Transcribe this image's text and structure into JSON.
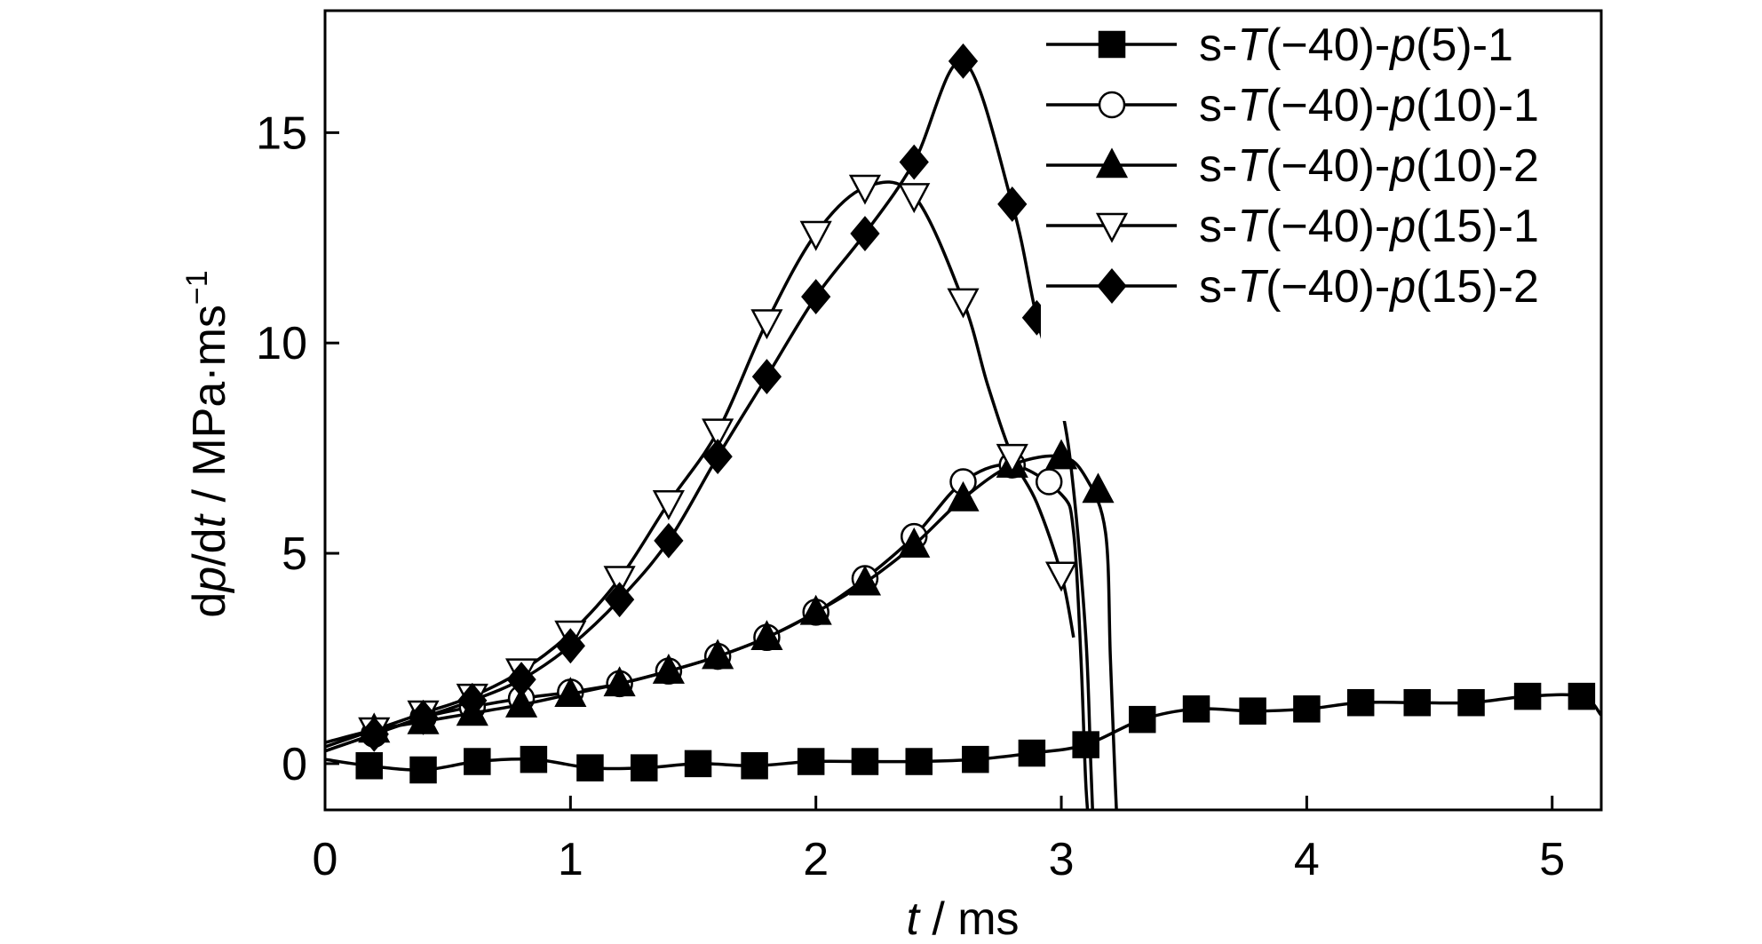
{
  "chart_data": {
    "type": "line",
    "xlabel": {
      "var": "t",
      "rest": " / ms"
    },
    "ylabel": {
      "d1": "d",
      "v1": "p",
      "mid": "/d",
      "v2": "t",
      "rest": " / MPa·ms",
      "sup": "−1"
    },
    "xlim": [
      0,
      5.2
    ],
    "ylim": [
      -1.1,
      17.9
    ],
    "xticks": [
      "0",
      "1",
      "2",
      "3",
      "4",
      "5"
    ],
    "yticks": [
      "0",
      "5",
      "10",
      "15"
    ],
    "grid": false,
    "legend_position": "top-right",
    "series": [
      {
        "name": "s-T(−40)-p(5)-1",
        "parts": {
          "a": "s-",
          "b": "T",
          "c": "(−40)-",
          "d": "p",
          "e": "(5)-1"
        },
        "marker": "square",
        "fill": "#000000",
        "x": [
          0,
          0.18,
          0.4,
          0.62,
          0.85,
          1.08,
          1.3,
          1.52,
          1.75,
          1.98,
          2.2,
          2.42,
          2.65,
          2.88,
          3.1,
          3.33,
          3.55,
          3.78,
          4.0,
          4.22,
          4.45,
          4.67,
          4.9,
          5.12,
          5.2
        ],
        "y": [
          0.1,
          -0.05,
          -0.15,
          0.05,
          0.1,
          -0.1,
          -0.1,
          0.0,
          -0.05,
          0.05,
          0.05,
          0.05,
          0.1,
          0.25,
          0.45,
          1.05,
          1.3,
          1.25,
          1.3,
          1.45,
          1.45,
          1.45,
          1.6,
          1.6,
          1.15
        ],
        "marker_x": [
          0.18,
          0.4,
          0.62,
          0.85,
          1.08,
          1.3,
          1.52,
          1.75,
          1.98,
          2.2,
          2.42,
          2.65,
          2.88,
          3.1,
          3.33,
          3.55,
          3.78,
          4.0,
          4.22,
          4.45,
          4.67,
          4.9,
          5.12
        ]
      },
      {
        "name": "s-T(−40)-p(10)-1",
        "parts": {
          "a": "s-",
          "b": "T",
          "c": "(−40)-",
          "d": "p",
          "e": "(10)-1"
        },
        "marker": "circle",
        "fill": "#ffffff",
        "x": [
          0,
          0.2,
          0.4,
          0.6,
          0.8,
          1.0,
          1.2,
          1.4,
          1.6,
          1.8,
          2.0,
          2.2,
          2.4,
          2.6,
          2.8,
          3.0,
          3.05,
          3.08,
          3.1,
          3.12,
          3.13
        ],
        "y": [
          0.3,
          0.7,
          1.1,
          1.35,
          1.55,
          1.7,
          1.9,
          2.2,
          2.55,
          3.0,
          3.6,
          4.4,
          5.4,
          6.7,
          7.1,
          6.4,
          5.5,
          2.5,
          -0.5,
          -2.0,
          -3.0
        ],
        "marker_x": [
          0.2,
          0.4,
          0.6,
          0.8,
          1.0,
          1.2,
          1.4,
          1.6,
          1.8,
          2.0,
          2.2,
          2.4,
          2.6,
          2.8,
          2.95
        ],
        "marker_y": [
          0.7,
          1.1,
          1.35,
          1.55,
          1.7,
          1.9,
          2.2,
          2.55,
          3.0,
          3.6,
          4.4,
          5.4,
          6.7,
          7.1,
          6.7
        ]
      },
      {
        "name": "s-T(−40)-p(10)-2",
        "parts": {
          "a": "s-",
          "b": "T",
          "c": "(−40)-",
          "d": "p",
          "e": "(10)-2"
        },
        "marker": "triangle-up",
        "fill": "#000000",
        "x": [
          0,
          0.2,
          0.4,
          0.6,
          0.8,
          1.0,
          1.2,
          1.4,
          1.6,
          1.8,
          2.0,
          2.2,
          2.4,
          2.6,
          2.8,
          3.0,
          3.1,
          3.18,
          3.2,
          3.22,
          3.24
        ],
        "y": [
          0.5,
          0.8,
          1.0,
          1.2,
          1.4,
          1.65,
          1.9,
          2.2,
          2.55,
          3.0,
          3.6,
          4.3,
          5.2,
          6.3,
          7.1,
          7.3,
          6.8,
          5.5,
          2.5,
          -0.5,
          -3.0
        ],
        "marker_x": [
          0.2,
          0.4,
          0.6,
          0.8,
          1.0,
          1.2,
          1.4,
          1.6,
          1.8,
          2.0,
          2.2,
          2.4,
          2.6,
          2.8,
          3.0,
          3.15
        ],
        "marker_y": [
          0.8,
          1.0,
          1.2,
          1.4,
          1.65,
          1.9,
          2.2,
          2.55,
          3.0,
          3.6,
          4.3,
          5.2,
          6.3,
          7.1,
          7.3,
          6.5
        ]
      },
      {
        "name": "s-T(−40)-p(15)-1",
        "parts": {
          "a": "s-",
          "b": "T",
          "c": "(−40)-",
          "d": "p",
          "e": "(15)-1"
        },
        "marker": "triangle-down",
        "fill": "#ffffff",
        "x": [
          0,
          0.2,
          0.4,
          0.6,
          0.8,
          1.0,
          1.2,
          1.4,
          1.6,
          1.8,
          2.0,
          2.2,
          2.4,
          2.6,
          2.7,
          2.8,
          2.9,
          3.0,
          3.05
        ],
        "y": [
          0.4,
          0.8,
          1.2,
          1.6,
          2.2,
          3.1,
          4.4,
          6.2,
          7.9,
          10.5,
          12.6,
          13.7,
          13.5,
          11.0,
          9.0,
          7.3,
          6.2,
          4.5,
          3.0
        ],
        "marker_x": [
          0.2,
          0.4,
          0.6,
          0.8,
          1.0,
          1.2,
          1.4,
          1.6,
          1.8,
          2.0,
          2.2,
          2.4,
          2.6,
          2.8,
          3.0
        ],
        "marker_y": [
          0.8,
          1.2,
          1.6,
          2.2,
          3.1,
          4.4,
          6.2,
          7.9,
          10.5,
          12.6,
          13.7,
          13.5,
          11.0,
          7.3,
          4.5
        ]
      },
      {
        "name": "s-T(−40)-p(15)-2",
        "parts": {
          "a": "s-",
          "b": "T",
          "c": "(−40)-",
          "d": "p",
          "e": "(15)-2"
        },
        "marker": "diamond",
        "fill": "#000000",
        "x": [
          0,
          0.2,
          0.4,
          0.6,
          0.8,
          1.0,
          1.2,
          1.4,
          1.6,
          1.8,
          2.0,
          2.2,
          2.4,
          2.6,
          2.8,
          2.9,
          3.0,
          3.05,
          3.1,
          3.12,
          3.14
        ],
        "y": [
          0.3,
          0.7,
          1.1,
          1.5,
          2.0,
          2.8,
          3.9,
          5.3,
          7.3,
          9.2,
          11.1,
          12.6,
          14.3,
          16.7,
          13.3,
          10.6,
          8.5,
          6.5,
          3.0,
          0.0,
          -3.0
        ],
        "marker_x": [
          0.2,
          0.4,
          0.6,
          0.8,
          1.0,
          1.2,
          1.4,
          1.6,
          1.8,
          2.0,
          2.2,
          2.4,
          2.6,
          2.8,
          2.9
        ],
        "marker_y": [
          0.7,
          1.1,
          1.5,
          2.0,
          2.8,
          3.9,
          5.3,
          7.3,
          9.2,
          11.1,
          12.6,
          14.3,
          16.7,
          13.3,
          10.6
        ]
      }
    ]
  }
}
